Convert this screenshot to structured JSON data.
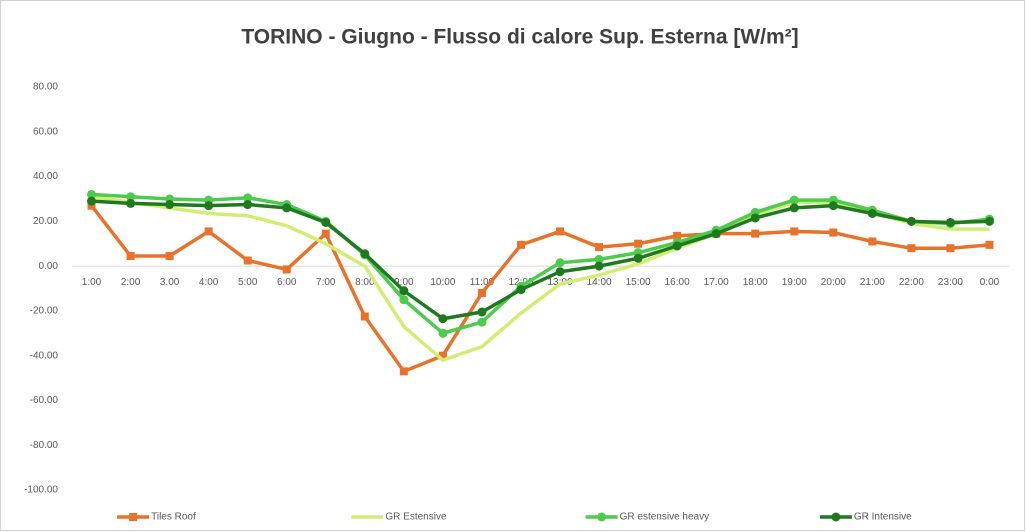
{
  "chart_data": {
    "type": "line",
    "title": "TORINO - Giugno - Flusso di calore Sup. Esterna [W/m²]",
    "categories": [
      "1:00",
      "2:00",
      "3.00",
      "4:00",
      "5:00",
      "6:00",
      "7:00",
      "8:00",
      "9:00",
      "10:00",
      "11:00",
      "12:00",
      "13:00",
      "14:00",
      "15:00",
      "16:00",
      "17.00",
      "18:00",
      "19:00",
      "20:00",
      "21:00",
      "22:00",
      "23:00",
      "0:00"
    ],
    "series": [
      {
        "name": "Tiles Roof",
        "color": "#e8722a",
        "marker": "square",
        "values": [
          27,
          4.5,
          4.5,
          15.5,
          2.5,
          -1.5,
          14.5,
          -22.5,
          -47,
          -40,
          -12,
          9.5,
          15.5,
          8.5,
          10,
          13.5,
          14.5,
          14.5,
          15.5,
          15,
          11,
          8,
          8,
          9.5
        ]
      },
      {
        "name": "GR Estensive",
        "color": "#d2ee72",
        "marker": "none",
        "values": [
          31,
          28.5,
          26,
          23.5,
          22.5,
          18,
          10,
          0,
          -27,
          -42,
          -36,
          -21,
          -8,
          -4,
          1,
          8,
          14.5,
          23,
          28.5,
          28.5,
          24,
          19,
          16.5,
          16.5
        ]
      },
      {
        "name": "GR estensive heavy",
        "color": "#4ccb4c",
        "marker": "circle",
        "values": [
          32,
          31,
          30,
          29.5,
          30.5,
          27.5,
          20,
          5,
          -15,
          -30,
          -25,
          -9,
          1.5,
          3,
          6,
          10.5,
          16,
          24,
          29.5,
          29.5,
          25,
          20,
          19,
          21
        ]
      },
      {
        "name": "GR Intensive",
        "color": "#1f7a1f",
        "marker": "circle",
        "values": [
          29,
          28,
          27.5,
          27,
          27.5,
          26,
          19.5,
          5.5,
          -11,
          -23.5,
          -20.5,
          -10.5,
          -2.5,
          0,
          3.5,
          9,
          14.5,
          21.5,
          26,
          27,
          23.5,
          20,
          19.5,
          20
        ]
      }
    ],
    "ylim": [
      -100,
      80
    ],
    "yticks": [
      {
        "value": 80,
        "label": "80.00"
      },
      {
        "value": 60,
        "label": "60.00"
      },
      {
        "value": 40,
        "label": "40.00"
      },
      {
        "value": 20,
        "label": "20.00"
      },
      {
        "value": 0,
        "label": "0.00"
      },
      {
        "value": -20,
        "label": "-20.00"
      },
      {
        "value": -40,
        "label": "-40.00"
      },
      {
        "value": -60,
        "label": "-60.00"
      },
      {
        "value": -80,
        "label": "-80.00"
      },
      {
        "value": -100,
        "label": "-100.00"
      }
    ],
    "grid": false,
    "legend": "bottom"
  }
}
